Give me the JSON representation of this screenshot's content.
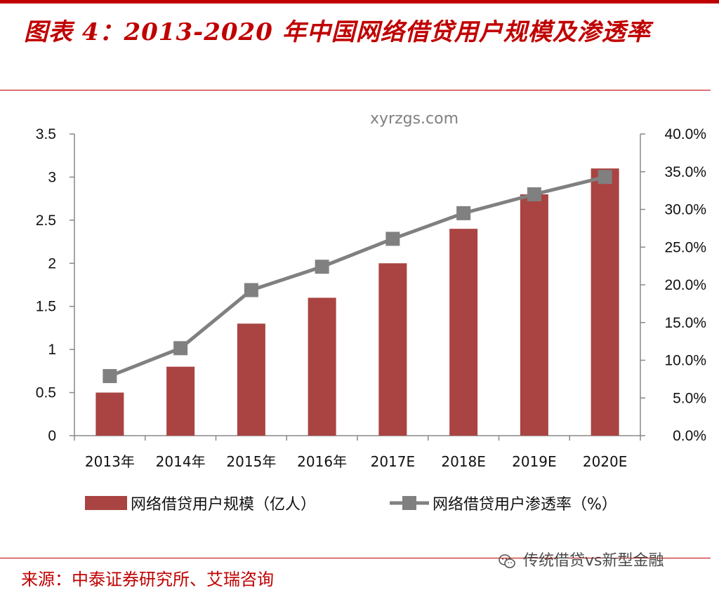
{
  "header": {
    "title": "图表 4：2013-2020 年中国网络借贷用户规模及渗透率"
  },
  "footer": {
    "source": "来源：中泰证券研究所、艾瑞咨询",
    "watermark": "传统借贷vs新型金融"
  },
  "site_watermark": "xyrzgs.com",
  "colors": {
    "accent": "#c00000",
    "bar": "#a94442",
    "line": "#808080"
  },
  "chart_data": {
    "type": "bar",
    "categories": [
      "2013年",
      "2014年",
      "2015年",
      "2016年",
      "2017E",
      "2018E",
      "2019E",
      "2020E"
    ],
    "series": [
      {
        "name": "网络借贷用户规模（亿人）",
        "type": "bar",
        "axis": "left",
        "values": [
          0.5,
          0.8,
          1.3,
          1.6,
          2.0,
          2.4,
          2.8,
          3.1
        ]
      },
      {
        "name": "网络借贷用户渗透率（%）",
        "type": "line",
        "axis": "right",
        "values": [
          7.9,
          11.6,
          19.3,
          22.4,
          26.1,
          29.5,
          32.0,
          34.3
        ]
      }
    ],
    "y_left": {
      "min": 0,
      "max": 3.5,
      "ticks": [
        "0",
        "0.5",
        "1",
        "1.5",
        "2",
        "2.5",
        "3",
        "3.5"
      ]
    },
    "y_right": {
      "min": 0,
      "max": 40,
      "ticks": [
        "0.0%",
        "5.0%",
        "10.0%",
        "15.0%",
        "20.0%",
        "25.0%",
        "30.0%",
        "35.0%",
        "40.0%"
      ]
    },
    "legend": "bottom",
    "grid": false
  }
}
